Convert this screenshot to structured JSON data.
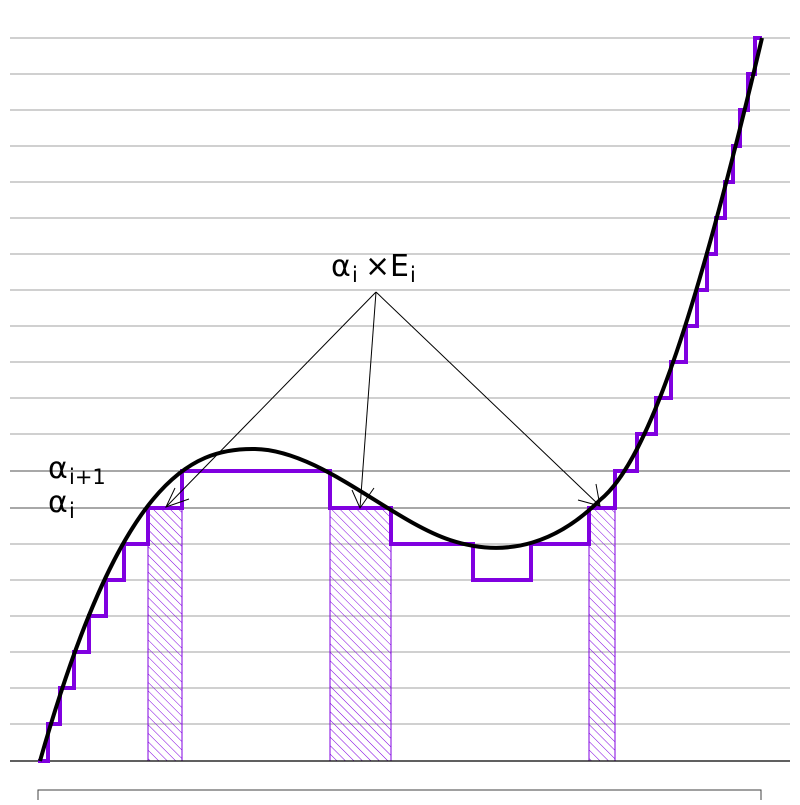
{
  "labels": {
    "alpha_i_plus_1": {
      "base": "α",
      "sub": "i+1"
    },
    "alpha_i": {
      "base": "α",
      "sub": "i"
    },
    "annotation": {
      "alpha": "α",
      "alpha_sub": "i",
      "times": "×",
      "e": "E",
      "e_sub": "i"
    }
  },
  "colors": {
    "curve": "#000000",
    "staircase": "#8000e0",
    "hatch": "#8000e0",
    "gridline": "#a0a0a0",
    "highlight_level": "#505050"
  }
}
